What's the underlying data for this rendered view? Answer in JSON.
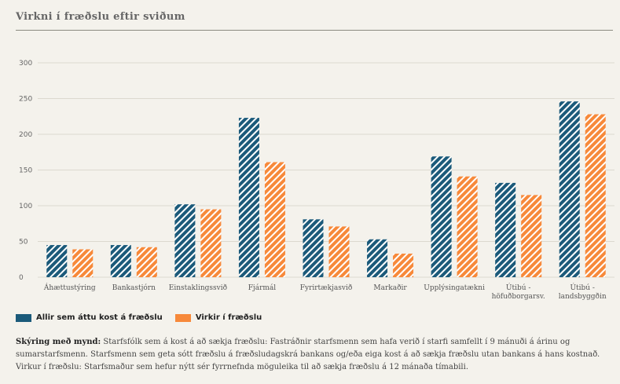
{
  "header": {
    "title": "Virkni í fræðslu eftir sviðum"
  },
  "chart_data": {
    "type": "bar",
    "categories": [
      [
        "Áhættustýring"
      ],
      [
        "Bankastjórn"
      ],
      [
        "Einstaklingssvið"
      ],
      [
        "Fjármál"
      ],
      [
        "Fyrirtækjasvið"
      ],
      [
        "Markaðir"
      ],
      [
        "Upplýsingatækni"
      ],
      [
        "Útibú -",
        "höfuðborgarsv."
      ],
      [
        "Útibú -",
        "landsbyggðin"
      ]
    ],
    "series": [
      {
        "name": "Allir sem áttu kost á fræðslu",
        "color": "#1b5a7a",
        "values": [
          45,
          45,
          102,
          223,
          81,
          53,
          169,
          132,
          246
        ]
      },
      {
        "name": "Virkir í fræðslu",
        "color": "#f7893a",
        "values": [
          39,
          42,
          95,
          161,
          71,
          33,
          141,
          115,
          228
        ]
      }
    ],
    "yticks": [
      0,
      50,
      100,
      150,
      200,
      250,
      300
    ],
    "ylim": [
      0,
      300
    ],
    "grid": true,
    "legend_position": "bottom-left"
  },
  "footnote": {
    "label": "Skýring með mynd:",
    "text": "Starfsfólk sem á kost á að sækja fræðslu: Fastráðnir starfsmenn sem hafa verið í starfi samfellt í 9 mánuði á árinu og sumarstarfsmenn. Starfsmenn sem geta sótt fræðslu á fræðsludagskrá bankans og/eða eiga kost á að sækja fræðslu utan bankans á hans kostnað. Virkur í fræðslu: Starfsmaður sem hefur nýtt sér fyrrnefnda möguleika til að sækja fræðslu á 12 mánaða tímabili."
  }
}
